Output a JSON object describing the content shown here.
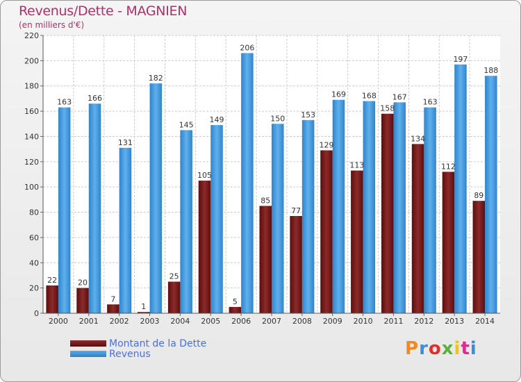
{
  "title": "Revenus/Dette - MAGNIEN",
  "subtitle": "(en milliers d'€)",
  "logo": {
    "text": "Proxiti",
    "colors": [
      "#f08a1c",
      "#3b8fd8",
      "#e0302a",
      "#5bb13c",
      "#f0c21c",
      "#d8308a",
      "#3b8fd8"
    ]
  },
  "chart_data": {
    "type": "bar",
    "categories": [
      "2000",
      "2001",
      "2002",
      "2003",
      "2004",
      "2005",
      "2006",
      "2007",
      "2008",
      "2009",
      "2010",
      "2011",
      "2012",
      "2013",
      "2014"
    ],
    "series": [
      {
        "name": "Montant de la Dette",
        "color": "#7a1c1c",
        "values": [
          22,
          20,
          7,
          1,
          25,
          105,
          5,
          85,
          77,
          129,
          113,
          158,
          134,
          112,
          89
        ]
      },
      {
        "name": "Revenus",
        "color": "#4a9fe0",
        "values": [
          163,
          166,
          131,
          182,
          145,
          149,
          206,
          150,
          153,
          169,
          168,
          167,
          163,
          197,
          188
        ]
      }
    ],
    "ylim": [
      0,
      220
    ],
    "yticks": [
      0,
      20,
      40,
      60,
      80,
      100,
      120,
      140,
      160,
      180,
      200,
      220
    ],
    "grid": true,
    "legend_position": "bottom-left"
  }
}
